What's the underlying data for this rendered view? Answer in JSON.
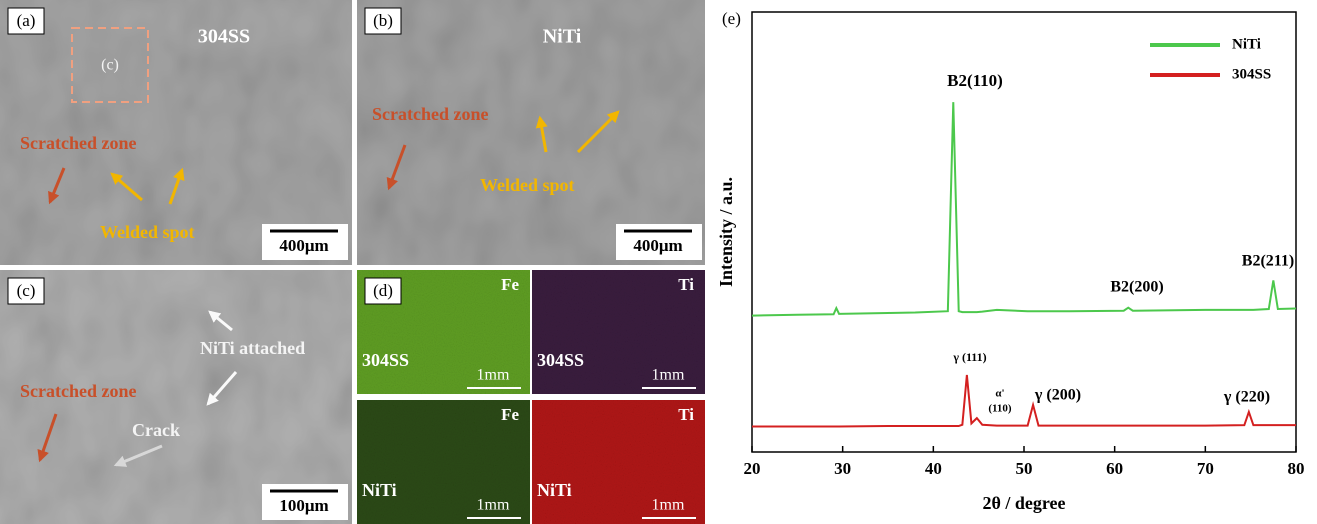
{
  "panels": [
    {
      "label": "(a)",
      "title": "304SS",
      "inset": "(c)",
      "annotations": [
        "Scratched zone",
        "Welded spot"
      ],
      "scale_bar": "400μm"
    },
    {
      "label": "(b)",
      "title": "NiTi",
      "annotations": [
        "Scratched zone",
        "Welded spot"
      ],
      "scale_bar": "400μm"
    },
    {
      "label": "(c)",
      "annotations": [
        "Scratched zone",
        "NiTi attached",
        "Crack"
      ],
      "scale_bar": "100μm"
    },
    {
      "label": "(d)",
      "maps": [
        {
          "element": "Fe",
          "material": "304SS",
          "scale_bar": "1mm"
        },
        {
          "element": "Ti",
          "material": "304SS",
          "scale_bar": "1mm"
        },
        {
          "element": "Fe",
          "material": "NiTi",
          "scale_bar": "1mm"
        },
        {
          "element": "Ti",
          "material": "NiTi",
          "scale_bar": "1mm"
        }
      ]
    }
  ],
  "chart_data": {
    "type": "line",
    "panel_label": "(e)",
    "xlabel": "2θ / degree",
    "ylabel": "Intensity / a.u.",
    "x": [
      20,
      25,
      29,
      29.3,
      29.6,
      35,
      38,
      41.6,
      42.2,
      42.8,
      43.2,
      43.7,
      44.2,
      44.8,
      45.4,
      47,
      50.4,
      51,
      51.6,
      55,
      61,
      61.5,
      62,
      70,
      74.3,
      74.8,
      75.3,
      77,
      77.5,
      78,
      80
    ],
    "series": [
      {
        "name": "NiTi",
        "color": "#4cc84c",
        "values": [
          31,
          31.2,
          31.3,
          32.7,
          31.4,
          31.6,
          31.7,
          32,
          79.5,
          32,
          31.8,
          31.8,
          31.8,
          31.8,
          31.9,
          32.3,
          32,
          32,
          32,
          32,
          32.1,
          32.8,
          32.1,
          32.3,
          32.3,
          32.3,
          32.3,
          32.5,
          39,
          32.5,
          32.6
        ]
      },
      {
        "name": "304SS",
        "color": "#d42020",
        "values": [
          5.8,
          5.8,
          5.8,
          5.8,
          5.8,
          5.9,
          5.9,
          5.9,
          5.9,
          5.9,
          6.2,
          17.5,
          6.5,
          7.7,
          6.2,
          6,
          6,
          10.7,
          6,
          6,
          6,
          6,
          6,
          6,
          6.1,
          9.1,
          6.1,
          6.1,
          6.1,
          6.1,
          6.1
        ]
      }
    ],
    "annotations": [
      "B2(110)",
      "B2(200)",
      "B2(211)",
      "γ (111)",
      "α'",
      "(110)",
      "γ (200)",
      "γ (220)"
    ],
    "xlim": [
      20,
      80
    ],
    "xticks": [
      20,
      30,
      40,
      50,
      60,
      70,
      80
    ],
    "ylim": [
      0,
      100
    ],
    "legend": "upper right"
  }
}
